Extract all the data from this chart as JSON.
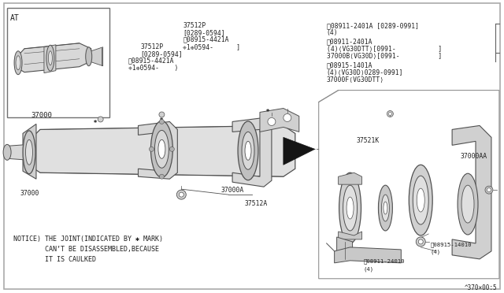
{
  "bg_color": "#ffffff",
  "outer_border_color": "#aaaaaa",
  "line_color": "#404040",
  "text_color": "#202020",
  "title_at": "AT",
  "notice_line1": "NOTICE) THE JOINT(INDICATED BY ✱ MARK)",
  "notice_line2": "        CAN’T BE DISASSEMBLED,BECAUSE",
  "notice_line3": "        IT IS CAULKED",
  "diagram_ref": "A370⁂00:5",
  "shaft_color": "#e0e0e0",
  "shaft_outline": "#505050",
  "label_37512p_top": "37512P\n[0289-0594]\nⓜ08915-4421A\n❈1❉0594-",
  "label_37512p_left": "37512P\n[0289-0594]\nⓜ08915-4421A\n❈1❉0594-",
  "label_right_block": "ⓝ08911-2401A [0289-0991]\n(4)\nⓝ08911-2401A\n(4)⟨VG30DTT⟩[0991-          ]\n37000B⟨VG30D⟩[0991-          ]\nⓜ08915-1401A\n(4)⟨VG30D⟩0289-0991]\n37000F⟨VG30DTT⟩",
  "label_08915_14010": "ⓜ08915-14010\n(4)",
  "label_08911_24010": "ⓝ08911-24010\n(4)"
}
